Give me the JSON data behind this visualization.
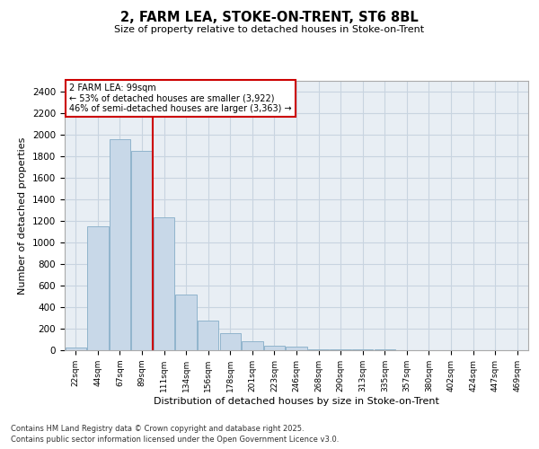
{
  "title": "2, FARM LEA, STOKE-ON-TRENT, ST6 8BL",
  "subtitle": "Size of property relative to detached houses in Stoke-on-Trent",
  "xlabel": "Distribution of detached houses by size in Stoke-on-Trent",
  "ylabel": "Number of detached properties",
  "categories": [
    "22sqm",
    "44sqm",
    "67sqm",
    "89sqm",
    "111sqm",
    "134sqm",
    "156sqm",
    "178sqm",
    "201sqm",
    "223sqm",
    "246sqm",
    "268sqm",
    "290sqm",
    "313sqm",
    "335sqm",
    "357sqm",
    "380sqm",
    "402sqm",
    "424sqm",
    "447sqm",
    "469sqm"
  ],
  "values": [
    25,
    1150,
    1960,
    1850,
    1230,
    520,
    275,
    155,
    85,
    45,
    35,
    10,
    10,
    5,
    5,
    3,
    2,
    2,
    1,
    1,
    1
  ],
  "bar_color": "#c8d8e8",
  "bar_edge_color": "#90b4cc",
  "vline_x": 3.5,
  "vline_color": "#cc0000",
  "annotation_text": "2 FARM LEA: 99sqm\n← 53% of detached houses are smaller (3,922)\n46% of semi-detached houses are larger (3,363) →",
  "annotation_box_color": "#ffffff",
  "annotation_box_edge": "#cc0000",
  "ylim": [
    0,
    2500
  ],
  "yticks": [
    0,
    200,
    400,
    600,
    800,
    1000,
    1200,
    1400,
    1600,
    1800,
    2000,
    2200,
    2400
  ],
  "footnote1": "Contains HM Land Registry data © Crown copyright and database right 2025.",
  "footnote2": "Contains public sector information licensed under the Open Government Licence v3.0.",
  "grid_color": "#c8d4e0",
  "bg_color": "#e8eef4"
}
